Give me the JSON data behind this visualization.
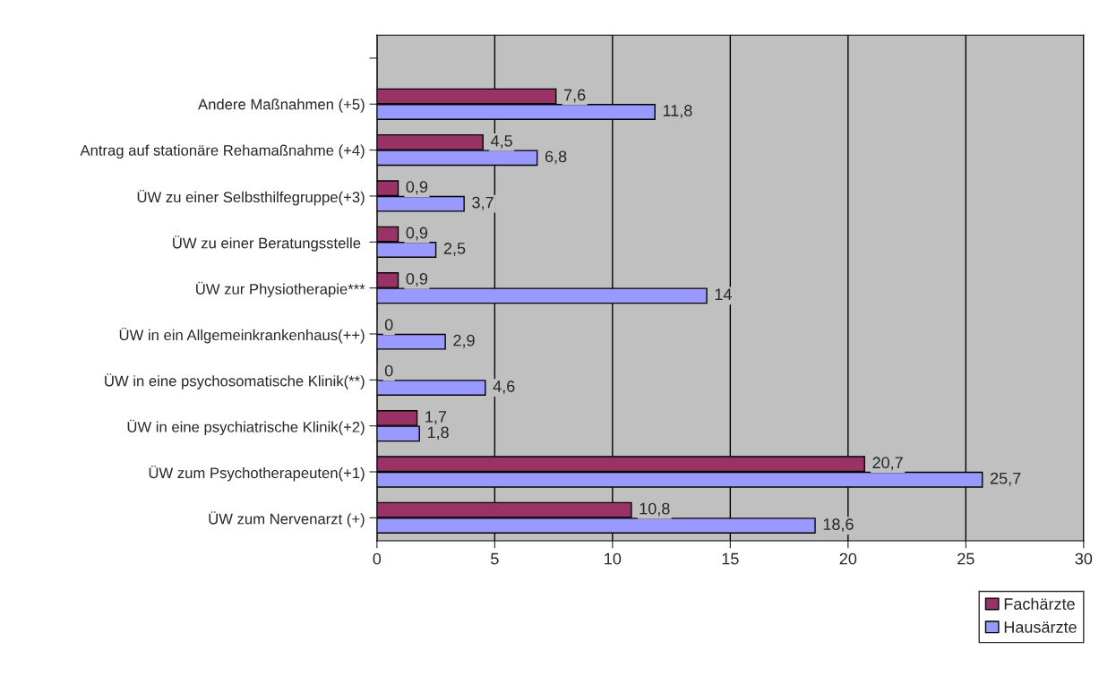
{
  "chart_data": {
    "type": "bar",
    "orientation": "horizontal",
    "categories": [
      null,
      "Andere Maßnahmen (+5)",
      "Antrag auf stationäre Rehamaßnahme (+4)",
      "ÜW zu einer Selbsthilfegruppe(+3)",
      "ÜW zu einer Beratungsstelle ",
      "ÜW zur Physiotherapie***",
      "ÜW in ein Allgemeinkrankenhaus(++)",
      "ÜW in eine psychosomatische Klinik(**)",
      "ÜW in eine psychiatrische Klinik(+2)",
      "ÜW zum Psychotherapeuten(+1)",
      "ÜW zum Nervenarzt (+)"
    ],
    "series": [
      {
        "name": "Fachärzte",
        "color": "#993366",
        "values": [
          null,
          7.6,
          4.5,
          0.9,
          0.9,
          0.9,
          0,
          0,
          1.7,
          20.7,
          10.8
        ],
        "value_labels": [
          null,
          "7,6",
          "4,5",
          "0,9",
          "0,9",
          "0,9",
          "0",
          "0",
          "1,7",
          "20,7",
          "10,8"
        ]
      },
      {
        "name": "Hausärzte",
        "color": "#9999ff",
        "values": [
          null,
          11.8,
          6.8,
          3.7,
          2.5,
          14,
          2.9,
          4.6,
          1.8,
          25.7,
          18.6
        ],
        "value_labels": [
          null,
          "11,8",
          "6,8",
          "3,7",
          "2,5",
          "14",
          "2,9",
          "4,6",
          "1,8",
          "25,7",
          "18,6"
        ]
      }
    ],
    "xlim": [
      0,
      30
    ],
    "xticks": [
      0,
      5,
      10,
      15,
      20,
      25,
      30
    ],
    "grid": "x",
    "legend": "bottom right"
  }
}
